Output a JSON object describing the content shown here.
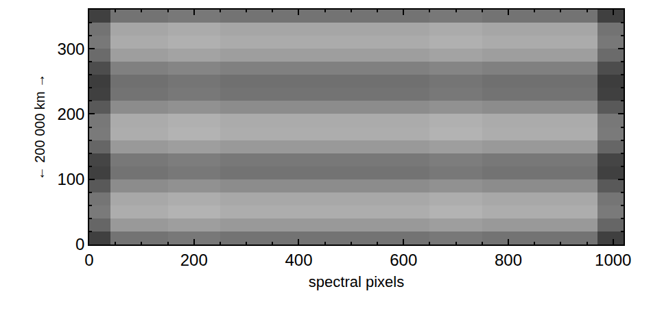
{
  "chart_data": {
    "type": "heatmap",
    "x_label": "spectral pixels",
    "y_label": "← 200 000 km →",
    "color": "gray",
    "xlim": [
      0,
      1020
    ],
    "ylim": [
      0,
      360
    ],
    "xticks": [
      0,
      200,
      400,
      600,
      800,
      1000
    ],
    "yticks": [
      0,
      100,
      200,
      300
    ],
    "zlim": [
      0,
      1
    ],
    "x": [
      0,
      40,
      150,
      250,
      350,
      450,
      550,
      650,
      750,
      850,
      970,
      1020
    ],
    "y": [
      0,
      20,
      40,
      60,
      80,
      100,
      120,
      140,
      160,
      180,
      200,
      220,
      240,
      260,
      280,
      300,
      320,
      340,
      360
    ],
    "z": [
      [
        0.25,
        0.45,
        0.47,
        0.45,
        0.45,
        0.45,
        0.45,
        0.47,
        0.45,
        0.45,
        0.25
      ],
      [
        0.4,
        0.6,
        0.62,
        0.6,
        0.6,
        0.6,
        0.6,
        0.62,
        0.6,
        0.6,
        0.4
      ],
      [
        0.48,
        0.68,
        0.7,
        0.68,
        0.68,
        0.68,
        0.68,
        0.7,
        0.68,
        0.68,
        0.48
      ],
      [
        0.46,
        0.66,
        0.68,
        0.66,
        0.66,
        0.66,
        0.66,
        0.68,
        0.66,
        0.66,
        0.46
      ],
      [
        0.35,
        0.55,
        0.57,
        0.55,
        0.55,
        0.55,
        0.55,
        0.57,
        0.55,
        0.55,
        0.35
      ],
      [
        0.25,
        0.45,
        0.47,
        0.45,
        0.45,
        0.45,
        0.45,
        0.47,
        0.45,
        0.45,
        0.25
      ],
      [
        0.27,
        0.47,
        0.49,
        0.47,
        0.47,
        0.47,
        0.47,
        0.49,
        0.47,
        0.47,
        0.27
      ],
      [
        0.4,
        0.6,
        0.62,
        0.6,
        0.6,
        0.6,
        0.6,
        0.62,
        0.6,
        0.6,
        0.4
      ],
      [
        0.48,
        0.68,
        0.7,
        0.68,
        0.68,
        0.68,
        0.68,
        0.7,
        0.68,
        0.68,
        0.48
      ],
      [
        0.47,
        0.67,
        0.69,
        0.67,
        0.67,
        0.67,
        0.67,
        0.69,
        0.67,
        0.67,
        0.47
      ],
      [
        0.35,
        0.55,
        0.57,
        0.55,
        0.55,
        0.55,
        0.55,
        0.57,
        0.55,
        0.55,
        0.35
      ],
      [
        0.25,
        0.45,
        0.47,
        0.45,
        0.45,
        0.45,
        0.45,
        0.47,
        0.45,
        0.45,
        0.25
      ],
      [
        0.24,
        0.44,
        0.46,
        0.44,
        0.44,
        0.44,
        0.44,
        0.46,
        0.44,
        0.44,
        0.24
      ],
      [
        0.3,
        0.5,
        0.52,
        0.5,
        0.5,
        0.5,
        0.5,
        0.52,
        0.5,
        0.5,
        0.3
      ],
      [
        0.42,
        0.62,
        0.64,
        0.62,
        0.62,
        0.62,
        0.62,
        0.64,
        0.62,
        0.62,
        0.42
      ],
      [
        0.47,
        0.67,
        0.69,
        0.67,
        0.67,
        0.67,
        0.67,
        0.69,
        0.67,
        0.67,
        0.47
      ],
      [
        0.45,
        0.65,
        0.67,
        0.65,
        0.65,
        0.65,
        0.65,
        0.67,
        0.65,
        0.65,
        0.45
      ],
      [
        0.25,
        0.45,
        0.47,
        0.45,
        0.45,
        0.45,
        0.45,
        0.47,
        0.45,
        0.45,
        0.25
      ]
    ]
  }
}
